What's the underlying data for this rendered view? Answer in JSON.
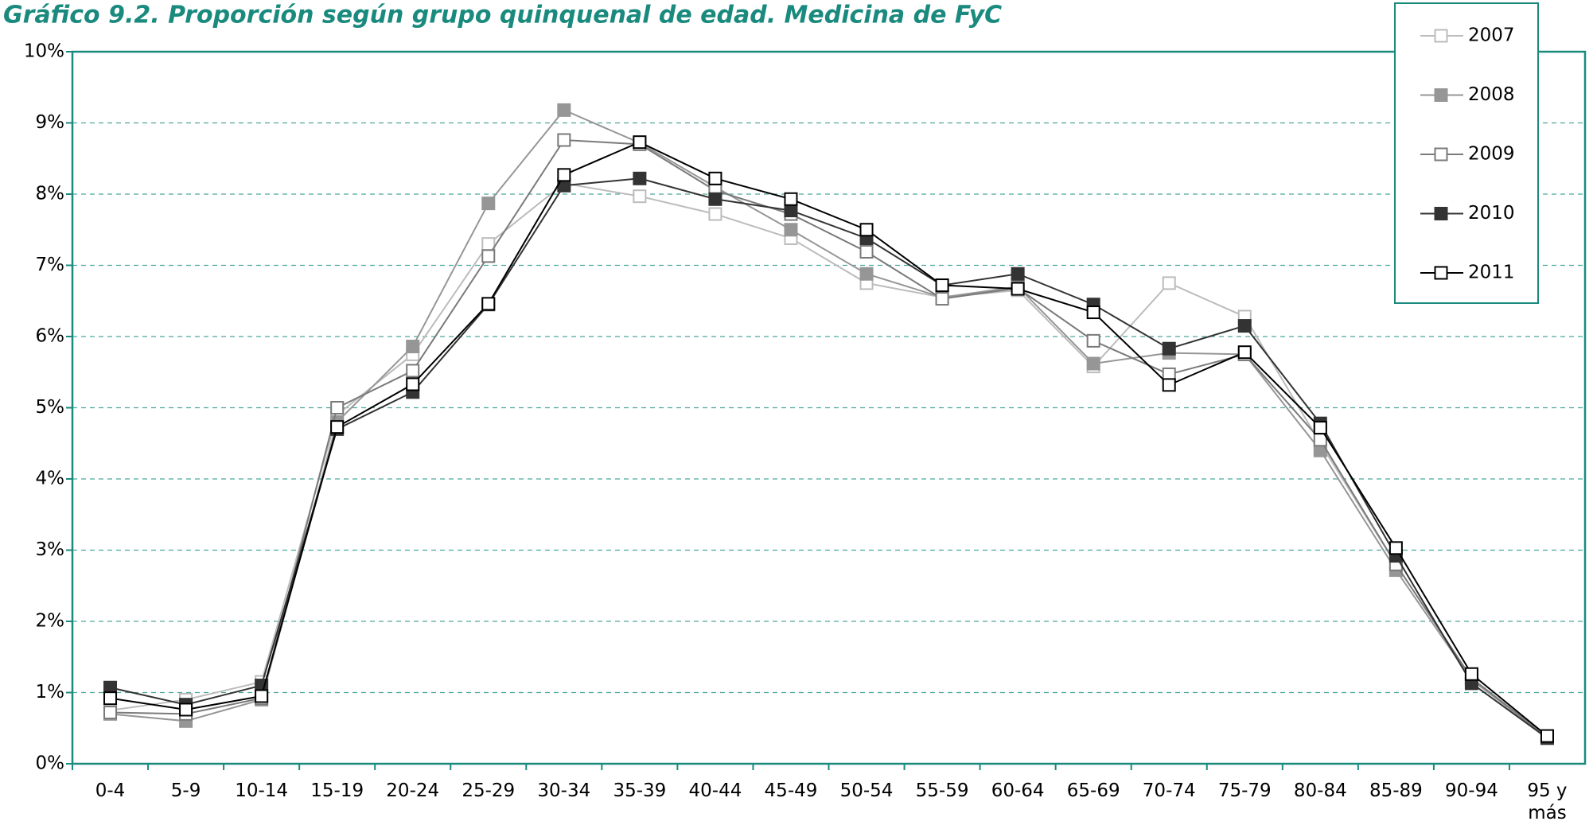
{
  "chart_data": {
    "type": "line",
    "title": "Gráfico 9.2. Proporción según grupo quinquenal de edad. Medicina de FyC",
    "categories": [
      "0-4",
      "5-9",
      "10-14",
      "15-19",
      "20-24",
      "25-29",
      "30-34",
      "35-39",
      "40-44",
      "45-49",
      "50-54",
      "55-59",
      "60-64",
      "65-69",
      "70-74",
      "75-79",
      "80-84",
      "85-89",
      "90-94",
      "95 y más"
    ],
    "series": [
      {
        "name": "2007",
        "color": "#bcbcbc",
        "marker_fill": "open",
        "values": [
          0.75,
          0.9,
          1.15,
          4.9,
          5.75,
          7.3,
          8.15,
          7.97,
          7.72,
          7.38,
          6.75,
          6.55,
          6.65,
          5.58,
          6.75,
          6.28,
          4.5,
          2.8,
          1.2,
          0.38
        ]
      },
      {
        "name": "2008",
        "color": "#969696",
        "marker_fill": "filled",
        "values": [
          0.7,
          0.6,
          0.9,
          4.8,
          5.86,
          7.87,
          9.18,
          8.72,
          8.1,
          7.5,
          6.88,
          6.55,
          6.7,
          5.62,
          5.77,
          5.75,
          4.4,
          2.72,
          1.18,
          0.37
        ]
      },
      {
        "name": "2009",
        "color": "#7a7a7a",
        "marker_fill": "open",
        "values": [
          0.72,
          0.7,
          0.92,
          5.0,
          5.52,
          7.13,
          8.76,
          8.7,
          8.05,
          7.72,
          7.19,
          6.53,
          6.68,
          5.94,
          5.47,
          5.75,
          4.55,
          2.8,
          1.2,
          0.38
        ]
      },
      {
        "name": "2010",
        "color": "#333333",
        "marker_fill": "filled",
        "values": [
          1.07,
          0.83,
          1.1,
          4.7,
          5.22,
          6.45,
          8.12,
          8.22,
          7.93,
          7.77,
          7.38,
          6.72,
          6.88,
          6.45,
          5.83,
          6.15,
          4.78,
          2.92,
          1.13,
          0.36
        ]
      },
      {
        "name": "2011",
        "color": "#000000",
        "marker_fill": "open",
        "values": [
          0.92,
          0.76,
          0.95,
          4.73,
          5.33,
          6.46,
          8.27,
          8.73,
          8.22,
          7.93,
          7.5,
          6.72,
          6.67,
          6.34,
          5.32,
          5.78,
          4.72,
          3.03,
          1.26,
          0.39
        ]
      }
    ],
    "ylim": [
      0,
      10
    ],
    "yticks": [
      {
        "value": 0,
        "label": "0%"
      },
      {
        "value": 1,
        "label": "1%"
      },
      {
        "value": 2,
        "label": "2%"
      },
      {
        "value": 3,
        "label": "3%"
      },
      {
        "value": 4,
        "label": "4%"
      },
      {
        "value": 5,
        "label": "5%"
      },
      {
        "value": 6,
        "label": "6%"
      },
      {
        "value": 7,
        "label": "7%"
      },
      {
        "value": 8,
        "label": "8%"
      },
      {
        "value": 9,
        "label": "9%"
      },
      {
        "value": 10,
        "label": "10%"
      }
    ],
    "grid": true,
    "legend": "top-right"
  }
}
